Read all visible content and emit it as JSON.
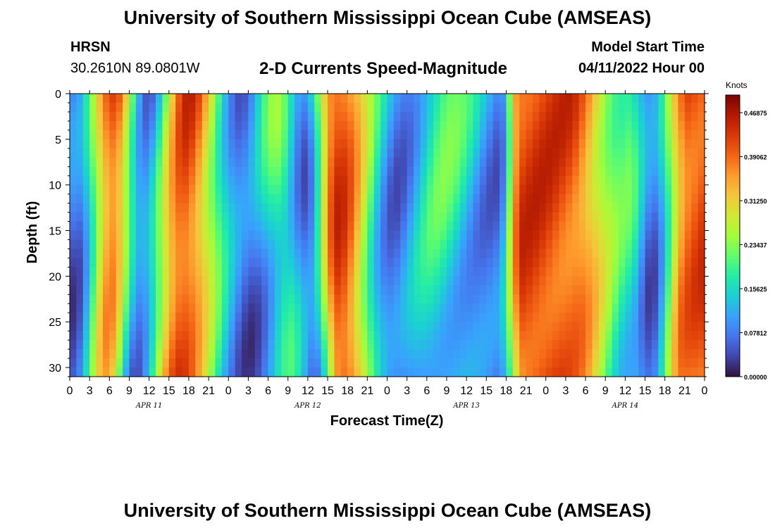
{
  "header": {
    "title": "University of Southern Mississippi Ocean Cube (AMSEAS)",
    "station": "HRSN",
    "coords": "30.2610N  89.0801W",
    "subtitle": "2-D Currents Speed-Magnitude",
    "model_start_label": "Model Start Time",
    "model_start_value": "04/11/2022 Hour 00"
  },
  "footer": {
    "title": "University of Southern Mississippi Ocean Cube (AMSEAS)"
  },
  "chart_data": {
    "type": "heatmap",
    "xlabel": "Forecast Time(Z)",
    "ylabel": "Depth (ft)",
    "x_tick_labels": [
      "0",
      "3",
      "6",
      "9",
      "12",
      "15",
      "18",
      "21",
      "0",
      "3",
      "6",
      "9",
      "12",
      "15",
      "18",
      "21",
      "0",
      "3",
      "6",
      "9",
      "12",
      "15",
      "18",
      "21",
      "0",
      "3",
      "6",
      "9",
      "12",
      "15",
      "18",
      "21",
      "0"
    ],
    "date_labels": [
      {
        "label": "APR 11",
        "hour": 12
      },
      {
        "label": "APR 12",
        "hour": 36
      },
      {
        "label": "APR 13",
        "hour": 60
      },
      {
        "label": "APR 14",
        "hour": 84
      }
    ],
    "xlim": [
      0,
      96
    ],
    "ylim": [
      0,
      31
    ],
    "y_ticks": [
      0,
      5,
      10,
      15,
      20,
      25,
      30
    ],
    "colorbar": {
      "unit": "Knots",
      "range": [
        0,
        0.5
      ],
      "tick_labels": [
        "0.00000",
        "0.07812",
        "0.15625",
        "0.23437",
        "0.31250",
        "0.39062",
        "0.46875"
      ],
      "colors": [
        "#30123b",
        "#4145ab",
        "#4675ed",
        "#39a2fc",
        "#1bcfd4",
        "#24eca6",
        "#61fc6c",
        "#a4fc3b",
        "#d1e834",
        "#f3c63a",
        "#fe9b2d",
        "#f36315",
        "#d93806",
        "#b11901",
        "#7a0403"
      ]
    },
    "field_description_points": [
      {
        "hour": 1,
        "profile": "low"
      },
      {
        "hour": 7,
        "profile": "high"
      },
      {
        "hour": 12,
        "profile": "low"
      },
      {
        "hour": 18,
        "profile": "high"
      },
      {
        "hour": 26,
        "profile": "low"
      },
      {
        "hour": 31,
        "profile": "mid"
      },
      {
        "hour": 35,
        "profile": "low"
      },
      {
        "hour": 40,
        "profile": "high"
      },
      {
        "hour": 50,
        "profile": "low"
      },
      {
        "hour": 57,
        "profile": "mid"
      },
      {
        "hour": 65,
        "profile": "low"
      },
      {
        "hour": 68,
        "profile": "high"
      },
      {
        "hour": 75,
        "profile": "high"
      },
      {
        "hour": 84,
        "profile": "mid"
      },
      {
        "hour": 88,
        "profile": "low"
      },
      {
        "hour": 94,
        "profile": "high"
      }
    ]
  }
}
